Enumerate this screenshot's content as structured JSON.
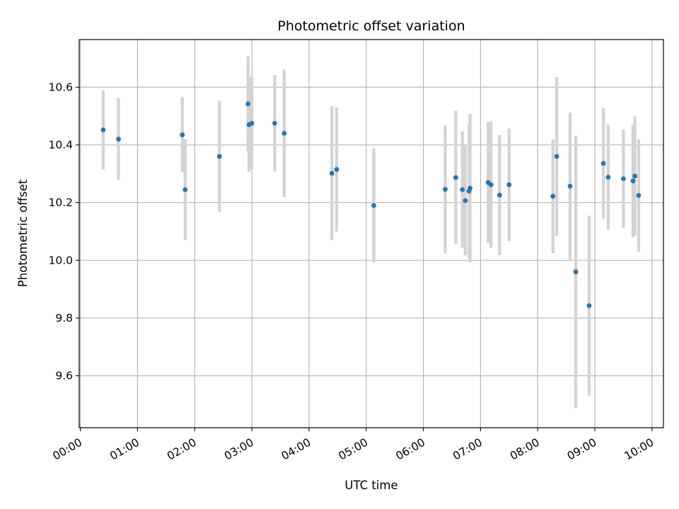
{
  "chart_data": {
    "type": "scatter",
    "title": "Photometric offset variation",
    "xlabel": "UTC time",
    "ylabel": "Photometric offset",
    "xlim_hours": [
      -0.02,
      10.2
    ],
    "ylim": [
      9.42,
      10.765
    ],
    "grid": true,
    "x_ticks": [
      {
        "label": "00:00",
        "hours": 0
      },
      {
        "label": "01:00",
        "hours": 1
      },
      {
        "label": "02:00",
        "hours": 2
      },
      {
        "label": "03:00",
        "hours": 3
      },
      {
        "label": "04:00",
        "hours": 4
      },
      {
        "label": "05:00",
        "hours": 5
      },
      {
        "label": "06:00",
        "hours": 6
      },
      {
        "label": "07:00",
        "hours": 7
      },
      {
        "label": "08:00",
        "hours": 8
      },
      {
        "label": "09:00",
        "hours": 9
      },
      {
        "label": "10:00",
        "hours": 10
      }
    ],
    "y_ticks": [
      {
        "label": "9.6",
        "value": 9.6
      },
      {
        "label": "9.8",
        "value": 9.8
      },
      {
        "label": "10.0",
        "value": 10.0
      },
      {
        "label": "10.2",
        "value": 10.2
      },
      {
        "label": "10.4",
        "value": 10.4
      },
      {
        "label": "10.6",
        "value": 10.6
      }
    ],
    "marker_color": "#1f77b4",
    "errorbar_color": "#d3d3d3",
    "points": [
      {
        "time": "00:24",
        "y": 10.452,
        "err": 0.137
      },
      {
        "time": "00:40",
        "y": 10.42,
        "err": 0.142
      },
      {
        "time": "01:47",
        "y": 10.435,
        "err": 0.13
      },
      {
        "time": "01:50",
        "y": 10.245,
        "err": 0.175
      },
      {
        "time": "02:26",
        "y": 10.36,
        "err": 0.193
      },
      {
        "time": "02:56",
        "y": 10.542,
        "err": 0.165
      },
      {
        "time": "02:57",
        "y": 10.47,
        "err": 0.163
      },
      {
        "time": "03:00",
        "y": 10.475,
        "err": 0.16
      },
      {
        "time": "03:24",
        "y": 10.475,
        "err": 0.167
      },
      {
        "time": "03:34",
        "y": 10.44,
        "err": 0.221
      },
      {
        "time": "04:24",
        "y": 10.302,
        "err": 0.232
      },
      {
        "time": "04:29",
        "y": 10.315,
        "err": 0.215
      },
      {
        "time": "05:08",
        "y": 10.19,
        "err": 0.198
      },
      {
        "time": "06:23",
        "y": 10.246,
        "err": 0.222
      },
      {
        "time": "06:34",
        "y": 10.287,
        "err": 0.232
      },
      {
        "time": "06:41",
        "y": 10.245,
        "err": 0.202
      },
      {
        "time": "06:44",
        "y": 10.207,
        "err": 0.19
      },
      {
        "time": "06:48",
        "y": 10.24,
        "err": 0.232
      },
      {
        "time": "06:49",
        "y": 10.25,
        "err": 0.257
      },
      {
        "time": "07:08",
        "y": 10.27,
        "err": 0.21
      },
      {
        "time": "07:11",
        "y": 10.262,
        "err": 0.219
      },
      {
        "time": "07:20",
        "y": 10.226,
        "err": 0.208
      },
      {
        "time": "07:30",
        "y": 10.262,
        "err": 0.195
      },
      {
        "time": "08:16",
        "y": 10.222,
        "err": 0.197
      },
      {
        "time": "08:20",
        "y": 10.36,
        "err": 0.275
      },
      {
        "time": "08:34",
        "y": 10.257,
        "err": 0.255
      },
      {
        "time": "08:40",
        "y": 9.96,
        "err": 0.472
      },
      {
        "time": "08:54",
        "y": 9.843,
        "err": 0.312
      },
      {
        "time": "09:09",
        "y": 10.336,
        "err": 0.192
      },
      {
        "time": "09:14",
        "y": 10.288,
        "err": 0.182
      },
      {
        "time": "09:30",
        "y": 10.283,
        "err": 0.17
      },
      {
        "time": "09:40",
        "y": 10.275,
        "err": 0.195
      },
      {
        "time": "09:42",
        "y": 10.292,
        "err": 0.207
      },
      {
        "time": "09:46",
        "y": 10.225,
        "err": 0.195
      }
    ]
  }
}
